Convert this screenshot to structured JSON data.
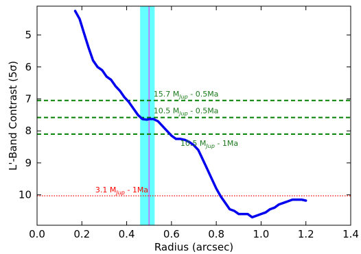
{
  "chart_data": {
    "type": "line",
    "xlabel": "Radius (arcsec)",
    "ylabel": "L'-Band Contrast (5σ)",
    "xlim": [
      0.0,
      1.4
    ],
    "ylim": [
      10.95,
      4.1
    ],
    "y_inverted": true,
    "xticks": [
      0.0,
      0.2,
      0.4,
      0.6,
      0.8,
      1.0,
      1.2,
      1.4
    ],
    "xtick_labels": [
      "0.0",
      "0.2",
      "0.4",
      "0.6",
      "0.8",
      "1.0",
      "1.2",
      "1.4"
    ],
    "yticks": [
      5,
      6,
      7,
      8,
      9,
      10
    ],
    "ytick_labels": [
      "5",
      "6",
      "7",
      "8",
      "9",
      "10"
    ],
    "grid": false,
    "series": [
      {
        "color": "#0000ee",
        "x": [
          0.17,
          0.19,
          0.21,
          0.23,
          0.25,
          0.27,
          0.29,
          0.31,
          0.33,
          0.35,
          0.37,
          0.39,
          0.41,
          0.43,
          0.45,
          0.47,
          0.49,
          0.5,
          0.52,
          0.54,
          0.56,
          0.58,
          0.6,
          0.62,
          0.64,
          0.66,
          0.68,
          0.7,
          0.72,
          0.74,
          0.76,
          0.78,
          0.8,
          0.82,
          0.84,
          0.86,
          0.88,
          0.9,
          0.92,
          0.94,
          0.96,
          0.98,
          1.0,
          1.02,
          1.04,
          1.06,
          1.08,
          1.1,
          1.12,
          1.14,
          1.16,
          1.18,
          1.2
        ],
        "y": [
          4.25,
          4.5,
          4.95,
          5.4,
          5.8,
          6.0,
          6.1,
          6.3,
          6.4,
          6.6,
          6.75,
          6.95,
          7.1,
          7.3,
          7.5,
          7.63,
          7.65,
          7.63,
          7.63,
          7.7,
          7.85,
          8.0,
          8.15,
          8.25,
          8.25,
          8.28,
          8.35,
          8.45,
          8.6,
          8.9,
          9.2,
          9.5,
          9.8,
          10.05,
          10.25,
          10.45,
          10.5,
          10.6,
          10.6,
          10.6,
          10.7,
          10.65,
          10.6,
          10.55,
          10.45,
          10.4,
          10.3,
          10.25,
          10.2,
          10.15,
          10.15,
          10.15,
          10.18
        ]
      }
    ],
    "hlines": [
      {
        "y": 7.05,
        "color": "#008000",
        "style": "dashed",
        "label_main": "15.7 M",
        "label_sub": "Jup",
        "label_tail": " - 0.5Ma",
        "label_x": 0.52,
        "label_y": 6.93
      },
      {
        "y": 7.58,
        "color": "#008000",
        "style": "dashed",
        "label_main": "10.5 M",
        "label_sub": "Jup",
        "label_tail": " - 0.5Ma",
        "label_x": 0.52,
        "label_y": 7.45
      },
      {
        "y": 8.1,
        "color": "#008000",
        "style": "dashed",
        "label_main": "10.5 M",
        "label_sub": "Jup",
        "label_tail": " - 1Ma",
        "label_x": 0.64,
        "label_y": 8.47
      },
      {
        "y": 10.03,
        "color": "#ff0000",
        "style": "dotted",
        "label_main": "3.1 M",
        "label_sub": "Jup",
        "label_tail": " - 1Ma",
        "label_x": 0.26,
        "label_y": 9.92
      }
    ],
    "vband": {
      "x0": 0.46,
      "x1": 0.525,
      "line_x": 0.5,
      "fill": "#66ffff",
      "line_color": "#cc66ff"
    }
  }
}
